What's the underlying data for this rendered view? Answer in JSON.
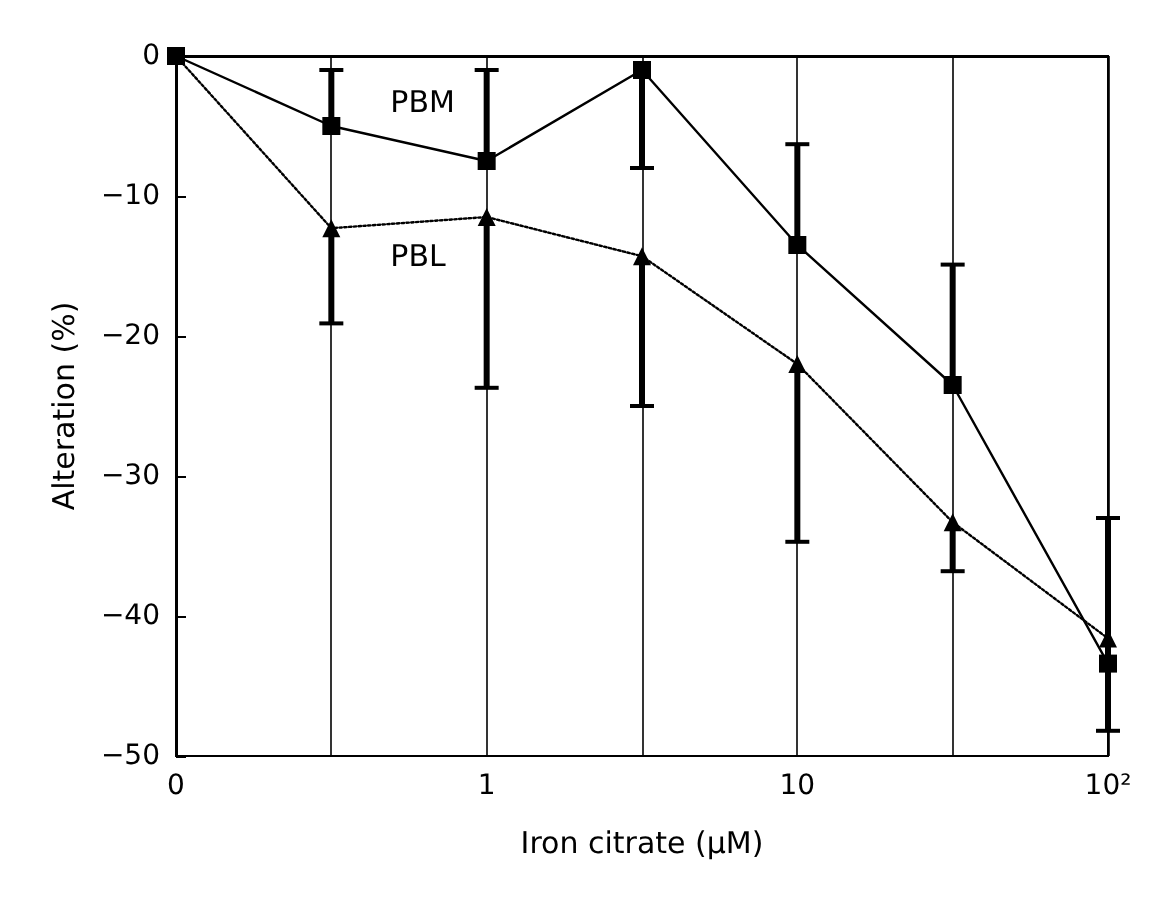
{
  "chart_data": {
    "type": "line",
    "xlabel": "Iron citrate (μM)",
    "ylabel": "Alteration (%)",
    "categories": [
      "0",
      null,
      "1",
      null,
      "10",
      null,
      "10²"
    ],
    "series": [
      {
        "name": "PBM",
        "color": "#000000",
        "marker": "square",
        "line_style": "solid",
        "values": [
          0,
          -5,
          -7.5,
          -1,
          -13.5,
          -23.5,
          -43.4
        ],
        "errors": [
          null,
          [
            -5,
            -1
          ],
          [
            -7.5,
            -1
          ],
          [
            -8,
            -1
          ],
          [
            -13.5,
            -6.3
          ],
          [
            -23.5,
            -14.9
          ],
          [
            -43.4,
            -33
          ]
        ]
      },
      {
        "name": "PBL",
        "color": "#000000",
        "marker": "triangle",
        "line_style": "dotted",
        "values": [
          0,
          -12.3,
          -11.5,
          -14.3,
          -22,
          -33.3,
          -41.6
        ],
        "errors": [
          null,
          [
            -19.1,
            -12.3
          ],
          [
            -23.7,
            -11.5
          ],
          [
            -25,
            -14.3
          ],
          [
            -34.7,
            -22
          ],
          [
            -36.8,
            -33.3
          ],
          [
            -48.2,
            -41.6
          ]
        ]
      }
    ],
    "ylim": [
      -50,
      0
    ],
    "yticks": [
      {
        "value": -50,
        "label": "−50"
      },
      {
        "value": -40,
        "label": "−40"
      },
      {
        "value": -30,
        "label": "−30"
      },
      {
        "value": -20,
        "label": "−20"
      },
      {
        "value": -10,
        "label": "−10"
      },
      0
    ],
    "grid": "x",
    "legend": false
  }
}
